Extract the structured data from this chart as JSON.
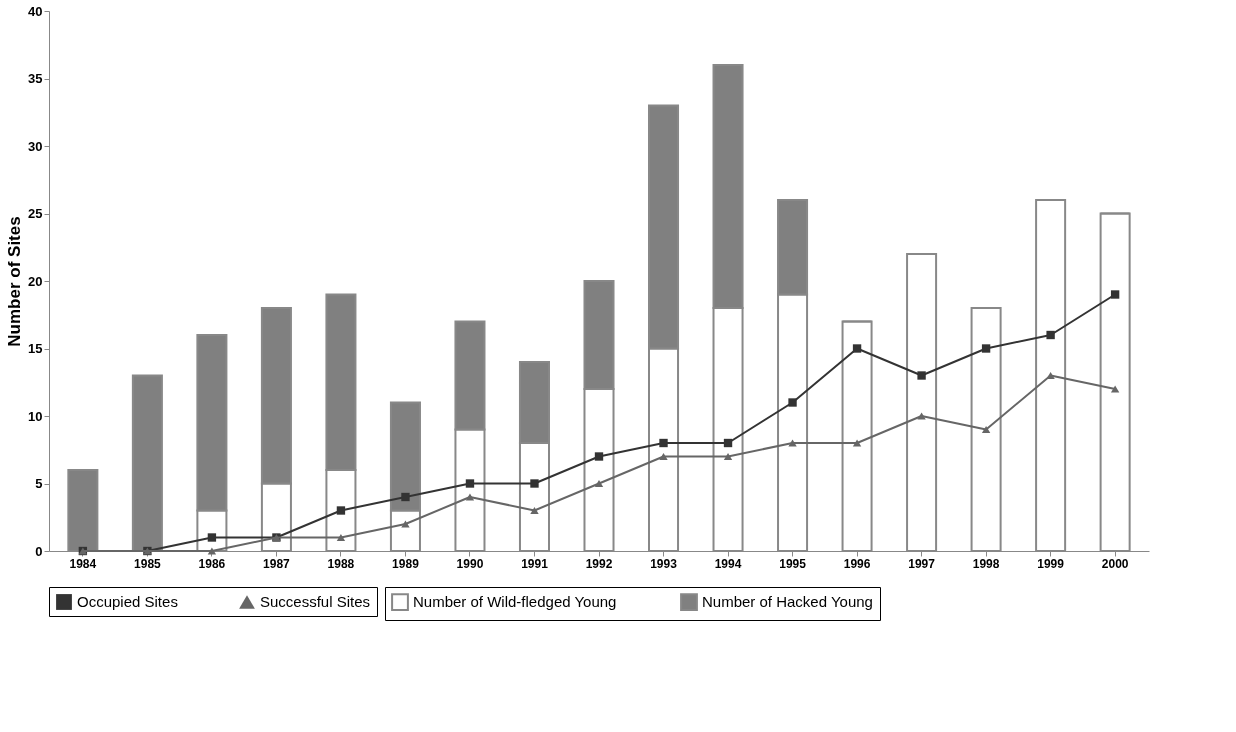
{
  "chart_data": {
    "type": "bar",
    "ylabel": "Number of Sites",
    "stacked": true,
    "categories": [
      "1984",
      "1985",
      "1986",
      "1987",
      "1988",
      "1989",
      "1990",
      "1991",
      "1992",
      "1993",
      "1994",
      "1995",
      "1996",
      "1997",
      "1998",
      "1999",
      "2000"
    ],
    "series": [
      {
        "name": "Number of Wild-fledged Young",
        "color": "#ffffff",
        "values": [
          0,
          0,
          3,
          5,
          6,
          3,
          9,
          8,
          12,
          15,
          18,
          19,
          17,
          22,
          18,
          26,
          25
        ]
      },
      {
        "name": "Number of Hacked Young",
        "color": "#808080",
        "values": [
          6,
          13,
          13,
          13,
          13,
          8,
          8,
          6,
          8,
          18,
          18,
          7,
          0,
          0,
          0,
          0,
          0
        ]
      },
      {
        "name": "Occupied Sites",
        "type": "line",
        "color": "#333333",
        "marker": "square",
        "values": [
          0,
          0,
          1,
          1,
          3,
          4,
          5,
          5,
          7,
          8,
          8,
          11,
          15,
          13,
          15,
          16,
          19
        ]
      },
      {
        "name": "Successful Sites",
        "type": "line",
        "color": "#666666",
        "marker": "triangle",
        "values": [
          0,
          0,
          0,
          1,
          1,
          2,
          4,
          3,
          5,
          7,
          7,
          8,
          8,
          10,
          9,
          13,
          12
        ]
      }
    ],
    "ylim": [
      0,
      40
    ],
    "yticks": [
      0,
      5,
      10,
      15,
      20,
      25,
      30,
      35,
      40
    ],
    "grid": false,
    "legend": "bottom"
  }
}
